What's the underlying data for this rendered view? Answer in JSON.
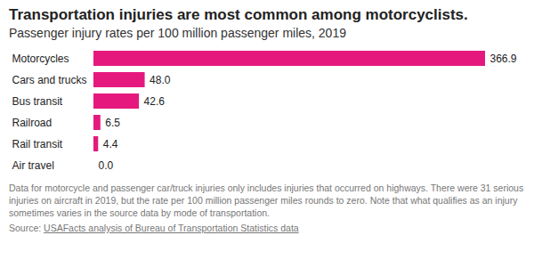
{
  "chart_data": {
    "type": "bar",
    "orientation": "horizontal",
    "title": "Transportation injuries are most common among motorcyclists.",
    "subtitle": "Passenger injury rates per 100 million passenger miles, 2019",
    "categories": [
      "Motorcycles",
      "Cars and trucks",
      "Bus transit",
      "Railroad",
      "Rail transit",
      "Air travel"
    ],
    "values": [
      366.9,
      48.0,
      42.6,
      6.5,
      4.4,
      0.0
    ],
    "value_labels": [
      "366.9",
      "48.0",
      "42.6",
      "6.5",
      "4.4",
      "0.0"
    ],
    "color": "#e5197d",
    "xlim": [
      0,
      366.9
    ],
    "xticks": [],
    "data_labels": true,
    "tick_labels": "y",
    "grid": false,
    "note": "Data for motorcycle and passenger car/truck injuries only includes injuries that occurred on highways. There were 31 serious injuries on aircraft in 2019, but the rate per 100 million passenger miles rounds to zero. Note that what qualifies as an injury sometimes varies in the source data by mode of transportation.",
    "source_prefix": "Source:",
    "source": "USAFacts analysis of Bureau of Transportation Statistics data"
  }
}
